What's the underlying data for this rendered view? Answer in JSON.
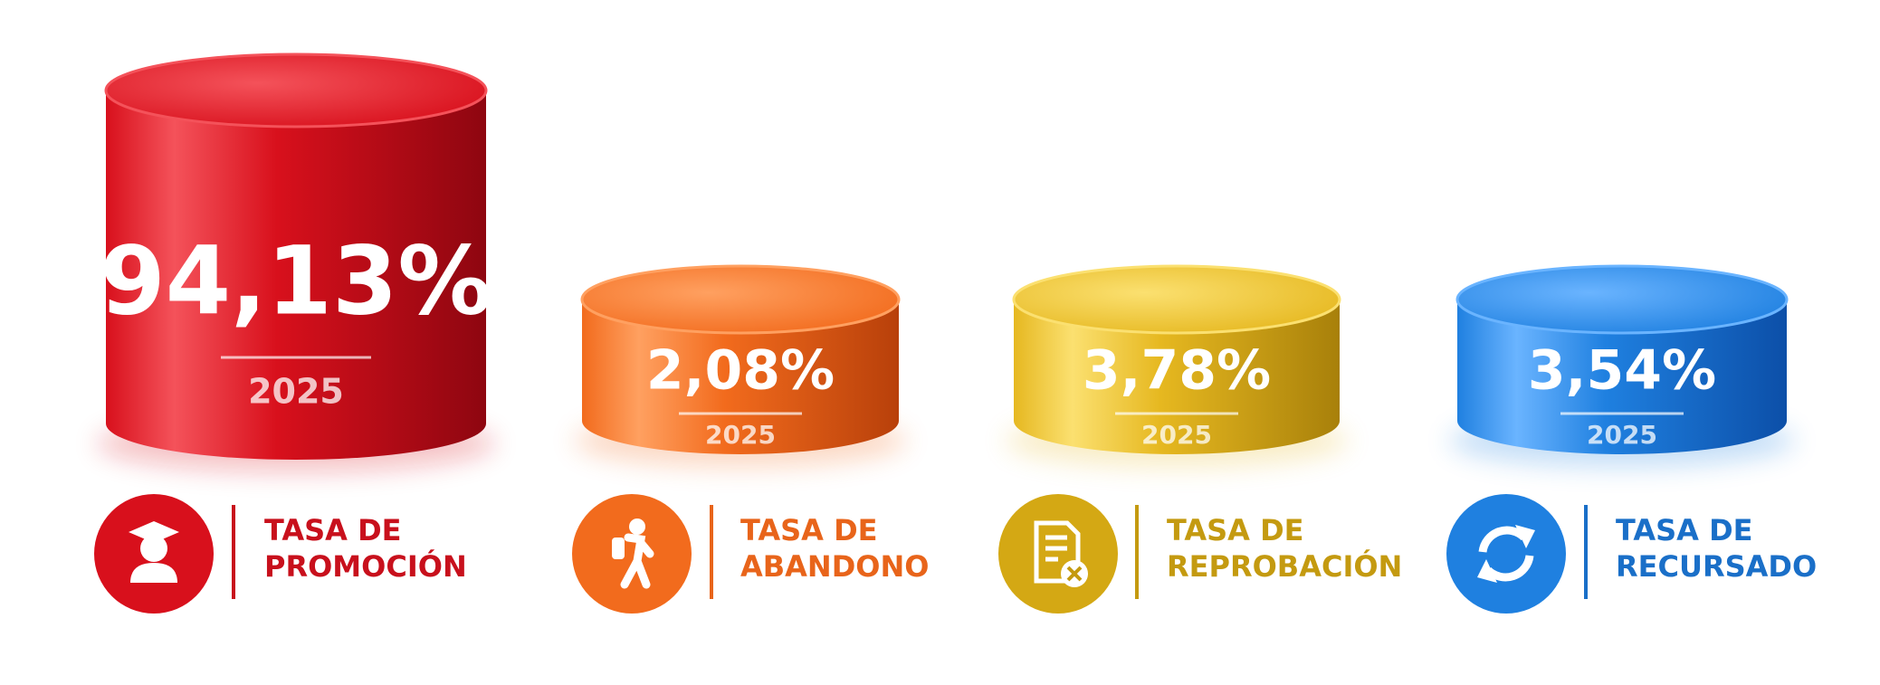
{
  "items": [
    {
      "value": "94,13%",
      "year": "2025",
      "label": [
        "TASA DE",
        "PROMOCIÓN"
      ]
    },
    {
      "value": "2,08%",
      "year": "2025",
      "label": [
        "TASA DE",
        "ABANDONO"
      ]
    },
    {
      "value": "3,78%",
      "year": "2025",
      "label": [
        "TASA DE",
        "REPROBACIÓN"
      ]
    },
    {
      "value": "3,54%",
      "year": "2025",
      "label": [
        "TASA DE",
        "RECURSADO"
      ]
    }
  ]
}
